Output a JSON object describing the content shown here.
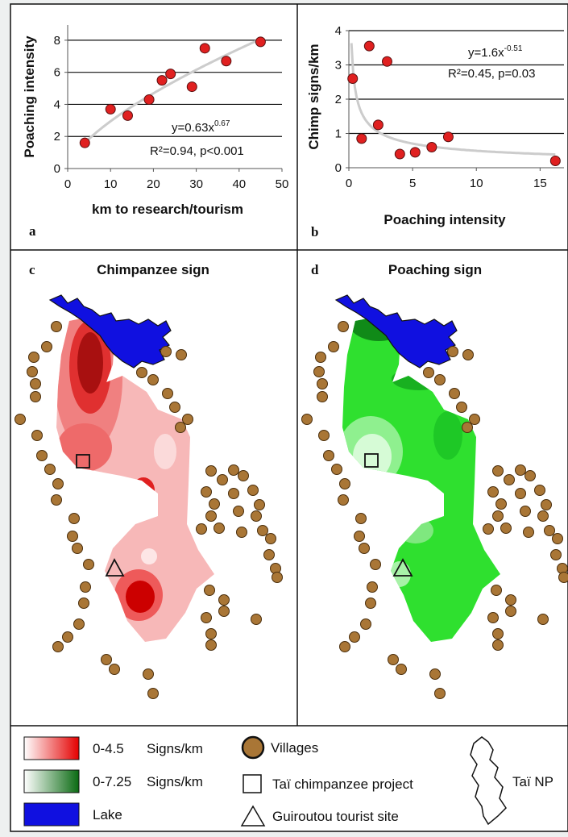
{
  "panels": {
    "a_letter": "a",
    "b_letter": "b",
    "c_letter": "c",
    "d_letter": "d",
    "c_title": "Chimpanzee sign",
    "d_title": "Poaching sign"
  },
  "chart_data": [
    {
      "type": "scatter",
      "panel": "a",
      "xlabel": "km to research/tourism",
      "ylabel": "Poaching intensity",
      "xlim": [
        0,
        50
      ],
      "ylim": [
        0,
        9
      ],
      "xticks": [
        "0",
        "10",
        "20",
        "30",
        "40",
        "50"
      ],
      "yticks": [
        "0",
        "2",
        "4",
        "6",
        "8"
      ],
      "grid": "horizontal",
      "points": [
        {
          "x": 4,
          "y": 1.6
        },
        {
          "x": 10,
          "y": 3.7
        },
        {
          "x": 14,
          "y": 3.3
        },
        {
          "x": 19,
          "y": 4.3
        },
        {
          "x": 22,
          "y": 5.5
        },
        {
          "x": 24,
          "y": 5.9
        },
        {
          "x": 29,
          "y": 5.1
        },
        {
          "x": 32,
          "y": 7.5
        },
        {
          "x": 37,
          "y": 6.7
        },
        {
          "x": 45,
          "y": 7.9
        }
      ],
      "fit": {
        "a": 0.63,
        "b": 0.67,
        "x_range": [
          4,
          45
        ]
      },
      "equation_base": "y=0.63x",
      "equation_exp": "0.67",
      "stats": "R²=0.94, p<0.001"
    },
    {
      "type": "scatter",
      "panel": "b",
      "xlabel": "Poaching intensity",
      "ylabel": "Chimp signs/km",
      "xlim": [
        0,
        17
      ],
      "ylim": [
        0,
        4
      ],
      "xticks": [
        "0",
        "5",
        "10",
        "15"
      ],
      "yticks": [
        "0",
        "1",
        "2",
        "3",
        "4"
      ],
      "grid": "horizontal",
      "points": [
        {
          "x": 0.3,
          "y": 2.6
        },
        {
          "x": 1.0,
          "y": 0.85
        },
        {
          "x": 1.6,
          "y": 3.55
        },
        {
          "x": 2.3,
          "y": 1.25
        },
        {
          "x": 3.0,
          "y": 3.1
        },
        {
          "x": 4.0,
          "y": 0.4
        },
        {
          "x": 5.2,
          "y": 0.45
        },
        {
          "x": 6.5,
          "y": 0.6
        },
        {
          "x": 7.8,
          "y": 0.9
        },
        {
          "x": 16.2,
          "y": 0.2
        }
      ],
      "fit": {
        "a": 1.6,
        "b": -0.51,
        "x_range": [
          0.2,
          16.2
        ]
      },
      "equation_base": "y=1.6x",
      "equation_exp": "-0.51",
      "stats": "R²=0.45, p=0.03"
    }
  ],
  "legend": {
    "chimp_range": "0-4.5",
    "chimp_units": "Signs/km",
    "poach_range": "0-7.25",
    "poach_units": "Signs/km",
    "lake": "Lake",
    "villages": "Villages",
    "project": "Taï chimpanzee project",
    "tourist": "Guiroutou tourist site",
    "park": "Taï NP"
  },
  "colors": {
    "chimp_high": "#cc0000",
    "chimp_low": "#f9c6c6",
    "poach_high": "#0b8a16",
    "poach_low": "#45f045",
    "lake": "#1010e0",
    "village": "#a97636",
    "marker": "#e02020"
  }
}
